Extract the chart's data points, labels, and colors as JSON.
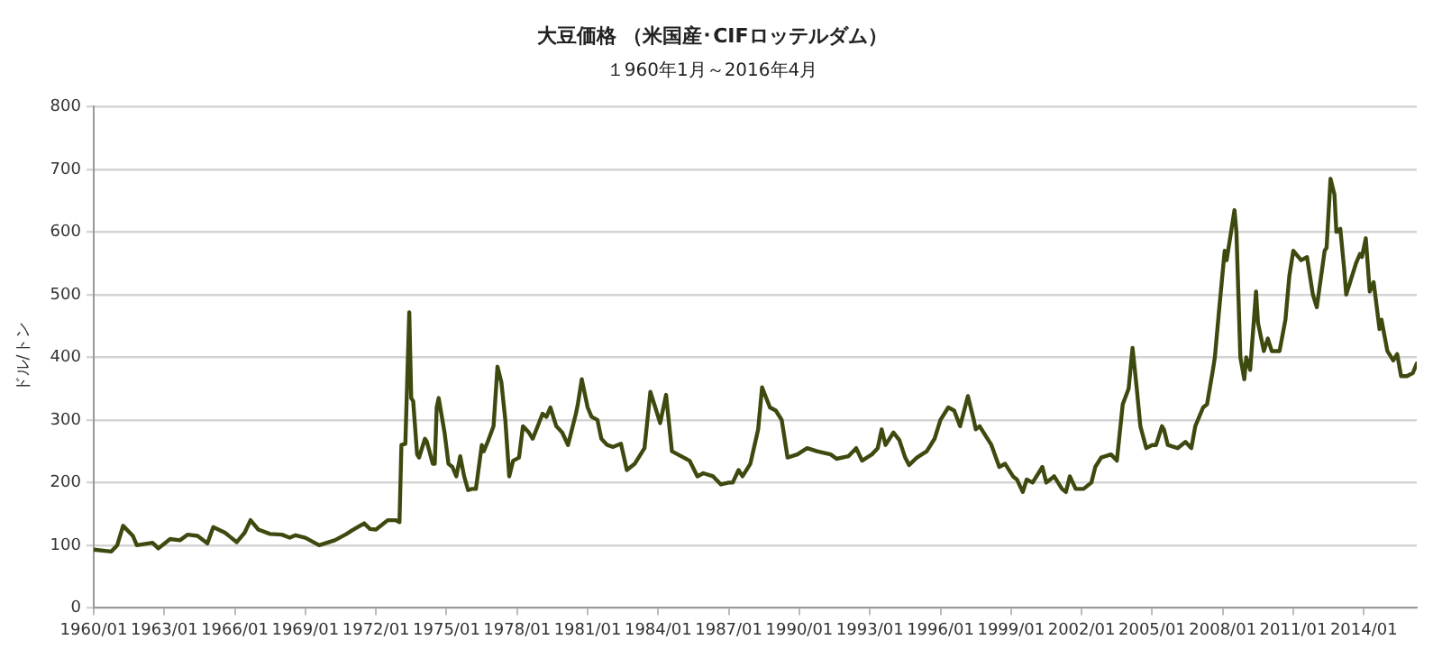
{
  "chart_data": {
    "type": "line",
    "title": "大豆価格 （米国産･CIFロッテルダム）",
    "subtitle": "１960年1月～2016年4月",
    "ylabel": "ドル/トン",
    "ylim": [
      0,
      800
    ],
    "yticks": [
      0,
      100,
      200,
      300,
      400,
      500,
      600,
      700,
      800
    ],
    "xlim": [
      "1960-01",
      "2016-04"
    ],
    "xticks": [
      {
        "value": "1960-01",
        "label": "1960/01"
      },
      {
        "value": "1963-01",
        "label": "1963/01"
      },
      {
        "value": "1966-01",
        "label": "1966/01"
      },
      {
        "value": "1969-01",
        "label": "1969/01"
      },
      {
        "value": "1972-01",
        "label": "1972/01"
      },
      {
        "value": "1975-01",
        "label": "1975/01"
      },
      {
        "value": "1978-01",
        "label": "1978/01"
      },
      {
        "value": "1981-01",
        "label": "1981/01"
      },
      {
        "value": "1984-01",
        "label": "1984/01"
      },
      {
        "value": "1987-01",
        "label": "1987/01"
      },
      {
        "value": "1990-01",
        "label": "1990/01"
      },
      {
        "value": "1993-01",
        "label": "1993/01"
      },
      {
        "value": "1996-01",
        "label": "1996/01"
      },
      {
        "value": "1999-01",
        "label": "1999/01"
      },
      {
        "value": "2002-01",
        "label": "2002/01"
      },
      {
        "value": "2005-01",
        "label": "2005/01"
      },
      {
        "value": "2008-01",
        "label": "2008/01"
      },
      {
        "value": "2011-01",
        "label": "2011/01"
      },
      {
        "value": "2014-01",
        "label": "2014/01"
      }
    ],
    "grid": "y",
    "legend": false,
    "marker": "none",
    "line_style": "solid",
    "x": [
      "1960-01",
      "1960-10",
      "1961-01",
      "1961-04",
      "1961-09",
      "1961-11",
      "1962-07",
      "1962-10",
      "1963-04",
      "1963-09",
      "1964-01",
      "1964-06",
      "1964-11",
      "1965-02",
      "1965-08",
      "1966-02",
      "1966-06",
      "1966-09",
      "1967-01",
      "1967-07",
      "1968-01",
      "1968-05",
      "1968-08",
      "1969-01",
      "1969-08",
      "1970-04",
      "1970-10",
      "1971-01",
      "1971-07",
      "1971-10",
      "1972-01",
      "1972-07",
      "1972-11",
      "1973-01",
      "1973-02",
      "1973-04",
      "1973-06",
      "1973-07",
      "1973-08",
      "1973-10",
      "1973-11",
      "1974-02",
      "1974-03",
      "1974-06",
      "1974-07",
      "1974-08",
      "1974-09",
      "1974-12",
      "1975-02",
      "1975-04",
      "1975-06",
      "1975-08",
      "1975-10",
      "1975-12",
      "1976-02",
      "1976-04",
      "1976-07",
      "1976-08",
      "1976-10",
      "1977-01",
      "1977-03",
      "1977-05",
      "1977-07",
      "1977-09",
      "1977-11",
      "1978-02",
      "1978-04",
      "1978-07",
      "1978-09",
      "1979-02",
      "1979-04",
      "1979-06",
      "1979-09",
      "1979-12",
      "1980-03",
      "1980-07",
      "1980-08",
      "1980-10",
      "1981-01",
      "1981-03",
      "1981-06",
      "1981-08",
      "1981-11",
      "1982-02",
      "1982-06",
      "1982-09",
      "1983-01",
      "1983-03",
      "1983-06",
      "1983-09",
      "1983-11",
      "1984-02",
      "1984-05",
      "1984-07",
      "1984-08",
      "1984-11",
      "1985-05",
      "1985-09",
      "1985-12",
      "1986-05",
      "1986-09",
      "1987-01",
      "1987-03",
      "1987-06",
      "1987-08",
      "1987-12",
      "1988-04",
      "1988-06",
      "1988-10",
      "1989-01",
      "1989-04",
      "1989-07",
      "1989-12",
      "1990-05",
      "1990-10",
      "1991-05",
      "1991-08",
      "1992-02",
      "1992-06",
      "1992-09",
      "1993-02",
      "1993-05",
      "1993-07",
      "1993-09",
      "1994-01",
      "1994-04",
      "1994-07",
      "1994-09",
      "1995-01",
      "1995-06",
      "1995-10",
      "1996-01",
      "1996-05",
      "1996-08",
      "1996-11",
      "1997-03",
      "1997-06",
      "1997-07",
      "1997-09",
      "1997-11",
      "1998-03",
      "1998-07",
      "1998-10",
      "1999-02",
      "1999-04",
      "1999-07",
      "1999-09",
      "1999-12",
      "2000-05",
      "2000-07",
      "2000-09",
      "2000-11",
      "2001-03",
      "2001-05",
      "2001-07",
      "2001-10",
      "2002-02",
      "2002-06",
      "2002-08",
      "2002-11",
      "2003-04",
      "2003-07",
      "2003-10",
      "2004-01",
      "2004-03",
      "2004-05",
      "2004-07",
      "2004-10",
      "2005-01",
      "2005-03",
      "2005-06",
      "2005-07",
      "2005-09",
      "2006-02",
      "2006-06",
      "2006-09",
      "2006-11",
      "2007-03",
      "2007-05",
      "2007-08",
      "2007-09",
      "2007-11",
      "2008-02",
      "2008-03",
      "2008-07",
      "2008-08",
      "2008-10",
      "2008-12",
      "2009-01",
      "2009-03",
      "2009-06",
      "2009-07",
      "2009-08",
      "2009-10",
      "2009-12",
      "2010-02",
      "2010-06",
      "2010-09",
      "2010-11",
      "2011-01",
      "2011-05",
      "2011-08",
      "2011-11",
      "2012-01",
      "2012-05",
      "2012-06",
      "2012-08",
      "2012-10",
      "2012-11",
      "2013-01",
      "2013-03",
      "2013-04",
      "2013-06",
      "2013-09",
      "2013-11",
      "2013-12",
      "2014-02",
      "2014-04",
      "2014-06",
      "2014-09",
      "2014-10",
      "2015-01",
      "2015-04",
      "2015-06",
      "2015-08",
      "2015-11",
      "2016-02",
      "2016-04"
    ],
    "series": [
      {
        "color": "#3d4a0f",
        "values": [
          93,
          90,
          100,
          131,
          115,
          100,
          104,
          95,
          110,
          108,
          117,
          115,
          103,
          129,
          120,
          105,
          120,
          140,
          125,
          118,
          117,
          112,
          116,
          112,
          100,
          108,
          118,
          124,
          135,
          126,
          125,
          140,
          140,
          137,
          260,
          262,
          472,
          335,
          330,
          245,
          240,
          270,
          265,
          230,
          230,
          320,
          335,
          280,
          230,
          225,
          210,
          242,
          210,
          188,
          190,
          190,
          260,
          250,
          265,
          290,
          385,
          360,
          300,
          210,
          235,
          240,
          290,
          280,
          270,
          310,
          305,
          320,
          290,
          280,
          260,
          310,
          325,
          365,
          320,
          305,
          300,
          270,
          260,
          257,
          262,
          220,
          230,
          240,
          255,
          345,
          325,
          295,
          340,
          280,
          250,
          245,
          235,
          210,
          215,
          210,
          197,
          200,
          200,
          220,
          210,
          230,
          285,
          352,
          320,
          315,
          300,
          240,
          245,
          255,
          250,
          245,
          238,
          242,
          255,
          235,
          245,
          255,
          285,
          260,
          280,
          268,
          240,
          228,
          240,
          250,
          270,
          300,
          320,
          315,
          290,
          338,
          300,
          285,
          290,
          280,
          260,
          225,
          230,
          210,
          205,
          185,
          205,
          200,
          225,
          200,
          205,
          210,
          190,
          185,
          210,
          190,
          190,
          200,
          225,
          240,
          245,
          235,
          325,
          350,
          415,
          355,
          290,
          255,
          260,
          260,
          290,
          285,
          260,
          255,
          265,
          255,
          290,
          320,
          325,
          380,
          400,
          470,
          570,
          555,
          635,
          600,
          400,
          365,
          400,
          380,
          505,
          455,
          440,
          410,
          430,
          410,
          410,
          460,
          530,
          570,
          555,
          560,
          500,
          480,
          570,
          575,
          685,
          660,
          600,
          605,
          540,
          500,
          520,
          550,
          565,
          560,
          590,
          505,
          520,
          445,
          460,
          410,
          395,
          405,
          370,
          370,
          375,
          390
        ]
      }
    ]
  }
}
